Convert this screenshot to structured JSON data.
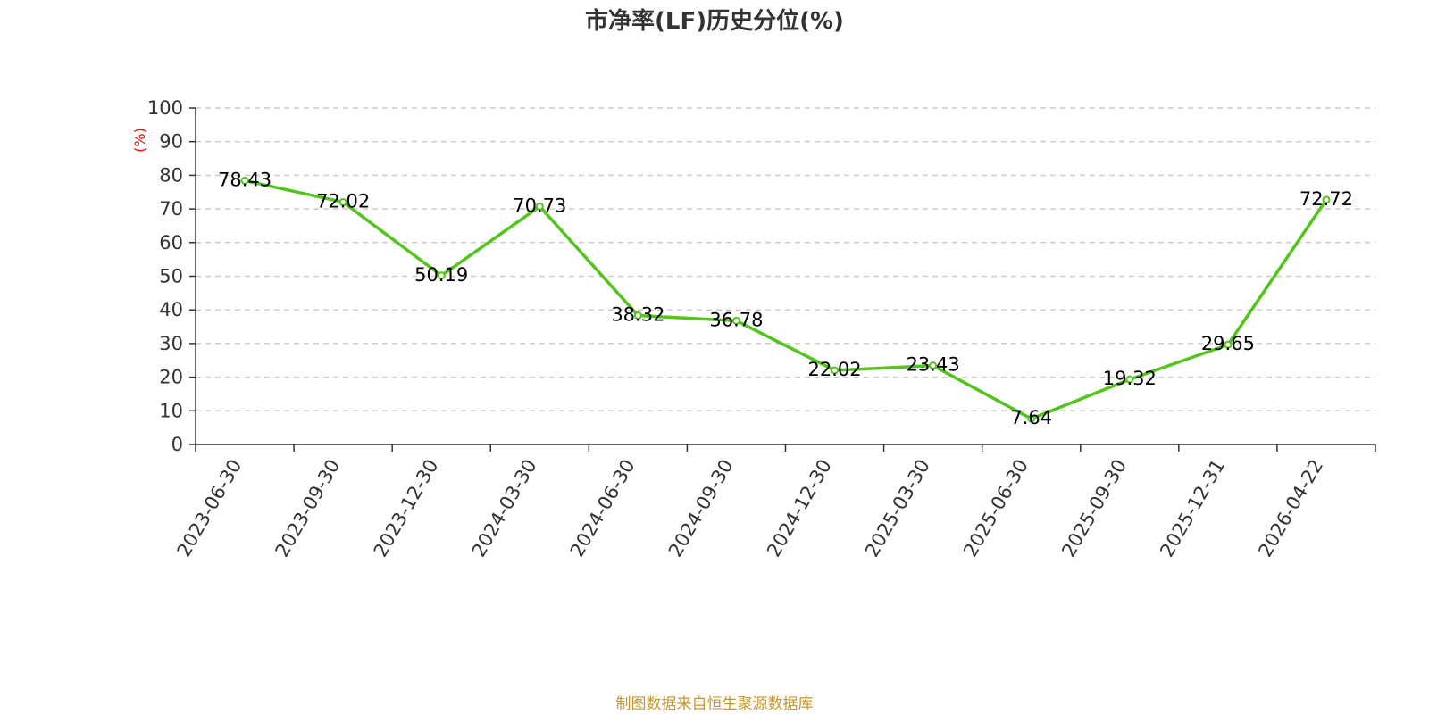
{
  "chart_data": {
    "type": "line",
    "title": "市净率(LF)历史分位(%)",
    "ylabel": "(%)",
    "xlabel": "",
    "ylim": [
      0,
      100
    ],
    "yticks": [
      0,
      10,
      20,
      30,
      40,
      50,
      60,
      70,
      80,
      90,
      100
    ],
    "grid": true,
    "categories": [
      "2023-06-30",
      "2023-09-30",
      "2023-12-30",
      "2024-03-30",
      "2024-06-30",
      "2024-09-30",
      "2024-12-30",
      "2025-03-30",
      "2025-06-30",
      "2025-09-30",
      "2025-12-31",
      "2026-04-22"
    ],
    "series": [
      {
        "values": [
          78.43,
          72.02,
          50.19,
          70.73,
          38.32,
          36.78,
          22.02,
          23.43,
          7.64,
          19.32,
          29.65,
          72.72
        ],
        "labels": [
          "78.43",
          "72.02",
          "50.19",
          "70.73",
          "38.32",
          "36.78",
          "22.02",
          "23.43",
          "7.64",
          "19.32",
          "29.65",
          "72.72"
        ]
      }
    ]
  },
  "source_note": "制图数据来自恒生聚源数据库",
  "colors": {
    "line": "#52c41a",
    "ylabel": "#ff0000",
    "source": "#c8962d",
    "axis": "#333333",
    "grid": "#cccccc"
  }
}
